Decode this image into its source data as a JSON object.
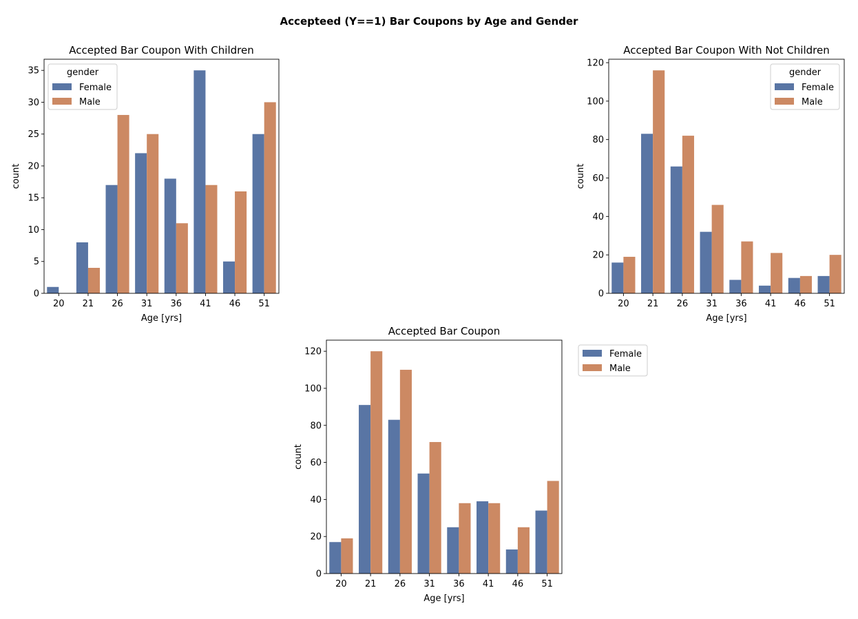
{
  "suptitle": "Accepteed (Y==1) Bar Coupons by Age and Gender",
  "colors": {
    "female": "#5975a4",
    "male": "#cc8963"
  },
  "chart_data": [
    {
      "type": "bar",
      "title": "Accepted Bar Coupon With Children",
      "xlabel": "Age [yrs]",
      "ylabel": "count",
      "categories": [
        "20",
        "21",
        "26",
        "31",
        "36",
        "41",
        "46",
        "51"
      ],
      "series": [
        {
          "name": "Female",
          "values": [
            1,
            8,
            17,
            22,
            18,
            35,
            5,
            25
          ]
        },
        {
          "name": "Male",
          "values": [
            0,
            4,
            28,
            25,
            11,
            17,
            16,
            30
          ]
        }
      ],
      "ylim": [
        0,
        36.75
      ],
      "yticks": [
        0,
        5,
        10,
        15,
        20,
        25,
        30,
        35
      ],
      "legend": {
        "title": "gender",
        "placement": "top-left"
      }
    },
    {
      "type": "bar",
      "title": "Accepted Bar Coupon With Not Children",
      "xlabel": "Age [yrs]",
      "ylabel": "count",
      "categories": [
        "20",
        "21",
        "26",
        "31",
        "36",
        "41",
        "46",
        "51"
      ],
      "series": [
        {
          "name": "Female",
          "values": [
            16,
            83,
            66,
            32,
            7,
            4,
            8,
            9
          ]
        },
        {
          "name": "Male",
          "values": [
            19,
            116,
            82,
            46,
            27,
            21,
            9,
            20
          ]
        }
      ],
      "ylim": [
        0,
        121.8
      ],
      "yticks": [
        0,
        20,
        40,
        60,
        80,
        100,
        120
      ],
      "legend": {
        "title": "gender",
        "placement": "top-right"
      }
    },
    {
      "type": "bar",
      "title": "Accepted Bar Coupon",
      "xlabel": "Age [yrs]",
      "ylabel": "count",
      "categories": [
        "20",
        "21",
        "26",
        "31",
        "36",
        "41",
        "46",
        "51"
      ],
      "series": [
        {
          "name": "Female",
          "values": [
            17,
            91,
            83,
            54,
            25,
            39,
            13,
            34
          ]
        },
        {
          "name": "Male",
          "values": [
            19,
            120,
            110,
            71,
            38,
            38,
            25,
            50
          ]
        }
      ],
      "ylim": [
        0,
        126
      ],
      "yticks": [
        0,
        20,
        40,
        60,
        80,
        100,
        120
      ],
      "legend": {
        "title": "",
        "placement": "outside-right"
      }
    }
  ]
}
